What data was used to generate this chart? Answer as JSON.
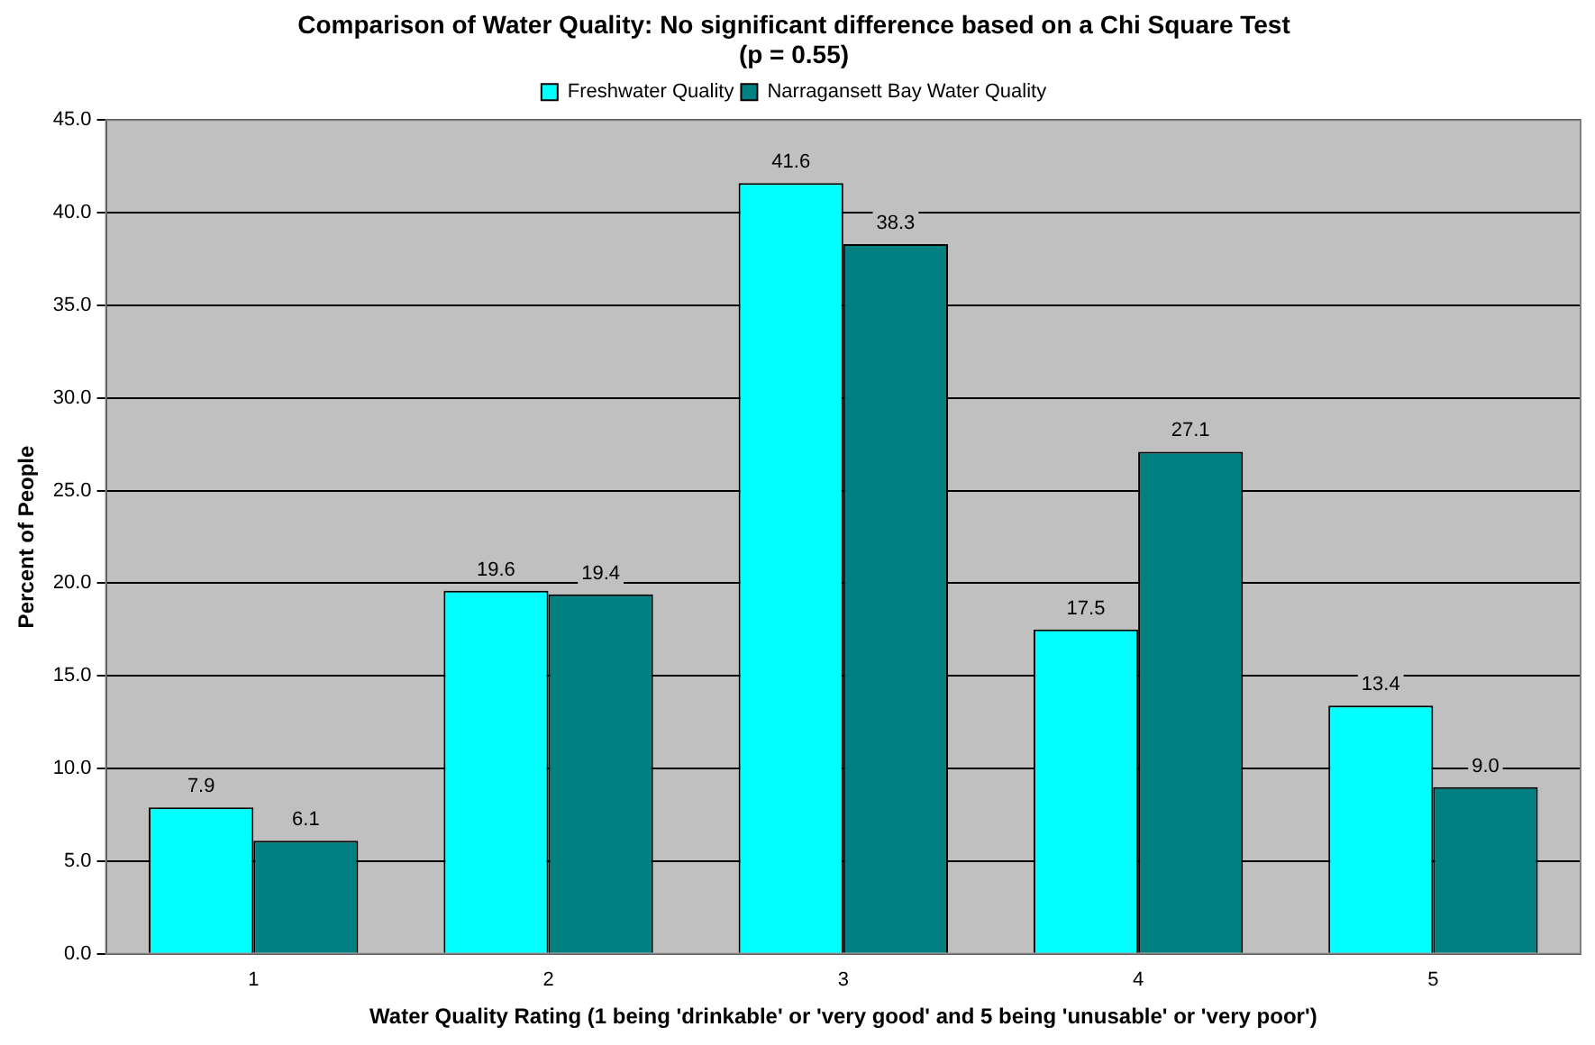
{
  "chart_data": {
    "type": "bar",
    "title": "Comparison of Water Quality: No significant difference based on a Chi Square Test (p = 0.55)",
    "xlabel": "Water Quality Rating (1 being 'drinkable' or 'very good' and 5 being 'unusable' or 'very poor')",
    "ylabel": "Percent of People",
    "categories": [
      "1",
      "2",
      "3",
      "4",
      "5"
    ],
    "series": [
      {
        "name": "Freshwater Quality",
        "color": "#00ffff",
        "values": [
          7.9,
          19.6,
          41.6,
          17.5,
          13.4
        ],
        "value_labels": [
          "7.9",
          "19.6",
          "41.6",
          "17.5",
          "13.4"
        ]
      },
      {
        "name": "Narragansett Bay Water Quality",
        "color": "#008080",
        "values": [
          6.1,
          19.4,
          38.3,
          27.1,
          9.0
        ],
        "value_labels": [
          "6.1",
          "19.4",
          "38.3",
          "27.1",
          "9.0"
        ]
      }
    ],
    "ylim": [
      0,
      45
    ],
    "yticks": [
      {
        "value": 0,
        "label": "0.0"
      },
      {
        "value": 5,
        "label": "5.0"
      },
      {
        "value": 10,
        "label": "10.0"
      },
      {
        "value": 15,
        "label": "15.0"
      },
      {
        "value": 20,
        "label": "20.0"
      },
      {
        "value": 25,
        "label": "25.0"
      },
      {
        "value": 30,
        "label": "30.0"
      },
      {
        "value": 35,
        "label": "35.0"
      },
      {
        "value": 40,
        "label": "40.0"
      },
      {
        "value": 45,
        "label": "45.0"
      }
    ],
    "grid": "y",
    "legend": "top"
  }
}
